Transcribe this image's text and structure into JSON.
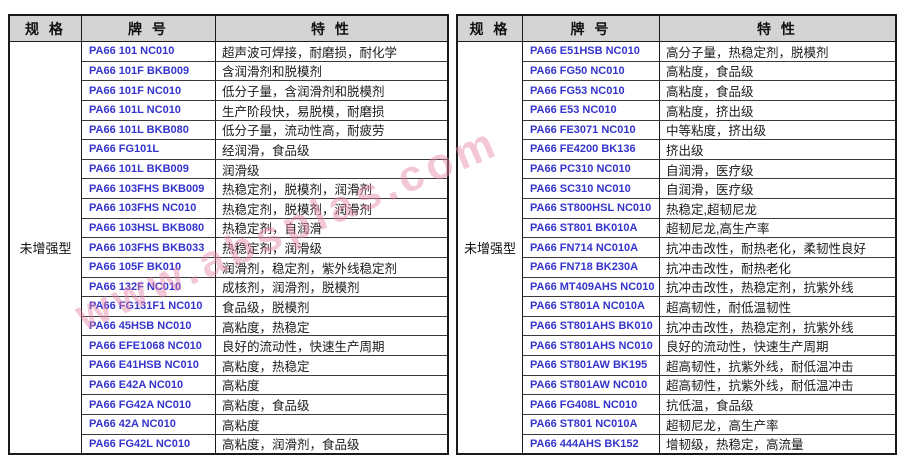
{
  "page": {
    "background": "#ffffff"
  },
  "watermark": {
    "text": "www.absplas.com",
    "color": "#e882a8"
  },
  "colors": {
    "header_bg": "#d4d4d4",
    "border": "#1a1a1a",
    "grade_text": "#3434cd",
    "feature_text": "#1a1a1a"
  },
  "tables": {
    "left": {
      "headers": {
        "spec": "规 格",
        "grade": "牌 号",
        "feature": "特 性"
      },
      "spec_label": "未增强型",
      "rows": [
        {
          "grade": "PA66 101 NC010",
          "feature": "超声波可焊接，耐磨损，耐化学"
        },
        {
          "grade": "PA66 101F BKB009",
          "feature": "含润滑剂和脱模剂"
        },
        {
          "grade": "PA66 101F NC010",
          "feature": "低分子量，含润滑剂和脱模剂"
        },
        {
          "grade": "PA66 101L NC010",
          "feature": "生产阶段快，易脱模，耐磨损"
        },
        {
          "grade": "PA66 101L BKB080",
          "feature": "低分子量，流动性高，耐疲劳"
        },
        {
          "grade": "PA66 FG101L",
          "feature": "经润滑，食品级"
        },
        {
          "grade": "PA66 101L BKB009",
          "feature": "润滑级"
        },
        {
          "grade": "PA66 103FHS BKB009",
          "feature": "热稳定剂，脱模剂，润滑剂"
        },
        {
          "grade": "PA66 103FHS NC010",
          "feature": "热稳定剂，脱模剂，润滑剂"
        },
        {
          "grade": "PA66 103HSL BKB080",
          "feature": "热稳定剂，自润滑"
        },
        {
          "grade": "PA66 103FHS BKB033",
          "feature": "热稳定剂，润滑级"
        },
        {
          "grade": "PA66 105F BK010",
          "feature": "润滑剂，稳定剂，紫外线稳定剂"
        },
        {
          "grade": "PA66 132F NC010",
          "feature": "成核剂，润滑剂，脱模剂"
        },
        {
          "grade": "PA66 FG131F1 NC010",
          "feature": "食品级，脱模剂"
        },
        {
          "grade": "PA66 45HSB NC010",
          "feature": "高粘度，热稳定"
        },
        {
          "grade": "PA66 EFE1068 NC010",
          "feature": "良好的流动性，快速生产周期"
        },
        {
          "grade": "PA66 E41HSB NC010",
          "feature": "高粘度，热稳定"
        },
        {
          "grade": "PA66 E42A NC010",
          "feature": "高粘度"
        },
        {
          "grade": "PA66 FG42A NC010",
          "feature": "高粘度，食品级"
        },
        {
          "grade": "PA66 42A NC010",
          "feature": "高粘度"
        },
        {
          "grade": "PA66 FG42L NC010",
          "feature": "高粘度，润滑剂，食品级"
        }
      ]
    },
    "right": {
      "headers": {
        "spec": "规 格",
        "grade": "牌 号",
        "feature": "特 性"
      },
      "spec_label": "未增强型",
      "rows": [
        {
          "grade": "PA66 E51HSB NC010",
          "feature": "高分子量，热稳定剂，脱模剂"
        },
        {
          "grade": "PA66 FG50 NC010",
          "feature": "高粘度，食品级"
        },
        {
          "grade": "PA66 FG53 NC010",
          "feature": "高粘度，食品级"
        },
        {
          "grade": "PA66 E53 NC010",
          "feature": "高粘度，挤出级"
        },
        {
          "grade": "PA66 FE3071 NC010",
          "feature": "中等粘度，挤出级"
        },
        {
          "grade": "PA66 FE4200 BK136",
          "feature": "挤出级"
        },
        {
          "grade": "PA66 PC310 NC010",
          "feature": "自润滑，医疗级"
        },
        {
          "grade": "PA66 SC310 NC010",
          "feature": "自润滑，医疗级"
        },
        {
          "grade": "PA66 ST800HSL NC010",
          "feature": "热稳定,超韧尼龙"
        },
        {
          "grade": "PA66 ST801 BK010A",
          "feature": "超韧尼龙,高生产率"
        },
        {
          "grade": "PA66 FN714 NC010A",
          "feature": "抗冲击改性，耐热老化，柔韧性良好"
        },
        {
          "grade": "PA66 FN718 BK230A",
          "feature": "抗冲击改性，耐热老化"
        },
        {
          "grade": "PA66 MT409AHS NC010",
          "feature": "抗冲击改性，热稳定剂，抗紫外线"
        },
        {
          "grade": "PA66 ST801A NC010A",
          "feature": "超高韧性，耐低温韧性"
        },
        {
          "grade": "PA66 ST801AHS BK010",
          "feature": "抗冲击改性，热稳定剂，抗紫外线"
        },
        {
          "grade": "PA66 ST801AHS NC010",
          "feature": "良好的流动性，快速生产周期"
        },
        {
          "grade": "PA66 ST801AW BK195",
          "feature": "超高韧性，抗紫外线，耐低温冲击"
        },
        {
          "grade": "PA66 ST801AW NC010",
          "feature": "超高韧性，抗紫外线，耐低温冲击"
        },
        {
          "grade": "PA66 FG408L NC010",
          "feature": "抗低温，食品级"
        },
        {
          "grade": "PA66 ST801 NC010A",
          "feature": "超韧尼龙，高生产率"
        },
        {
          "grade": "PA66 444AHS BK152",
          "feature": "增韧级，热稳定，高流量"
        }
      ]
    }
  }
}
